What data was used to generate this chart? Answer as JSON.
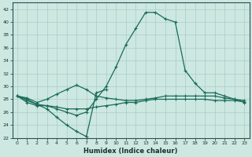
{
  "xlabel": "Humidex (Indice chaleur)",
  "ylim": [
    22,
    43
  ],
  "xlim": [
    -0.5,
    23.5
  ],
  "yticks": [
    22,
    24,
    26,
    28,
    30,
    32,
    34,
    36,
    38,
    40,
    42
  ],
  "xticks": [
    0,
    1,
    2,
    3,
    4,
    5,
    6,
    7,
    8,
    9,
    10,
    11,
    12,
    13,
    14,
    15,
    16,
    17,
    18,
    19,
    20,
    21,
    22,
    23
  ],
  "bg_color": "#cce8e0",
  "grid_color": "#aaccc8",
  "line_color": "#1a6b5a",
  "line_main": [
    28.5,
    28.0,
    27.2,
    27.0,
    26.5,
    26.0,
    25.5,
    26.0,
    28.0,
    30.0,
    33.0,
    36.5,
    39.0,
    41.5,
    41.5,
    40.5,
    40.0,
    32.5,
    30.5,
    29.0,
    29.0,
    28.5,
    28.0,
    27.5
  ],
  "line_upper": [
    28.5,
    28.2,
    27.5,
    28.0,
    28.8,
    29.5,
    30.2,
    29.5,
    28.5,
    28.2,
    28.0,
    27.8,
    27.8,
    28.0,
    28.2,
    28.5,
    28.5,
    28.5,
    28.5,
    28.5,
    28.5,
    28.2,
    28.0,
    27.8
  ],
  "line_lower": [
    28.5,
    27.5,
    27.0,
    27.0,
    26.8,
    26.5,
    26.5,
    26.5,
    26.8,
    27.0,
    27.2,
    27.5,
    27.5,
    27.8,
    28.0,
    28.0,
    28.0,
    28.0,
    28.0,
    28.0,
    27.8,
    27.8,
    27.8,
    27.6
  ],
  "line_dip_x": [
    0,
    1,
    2,
    3,
    4,
    5,
    6,
    7,
    8,
    9
  ],
  "line_dip_y": [
    28.5,
    27.8,
    27.2,
    26.5,
    25.2,
    24.0,
    23.0,
    22.2,
    29.0,
    29.5
  ]
}
